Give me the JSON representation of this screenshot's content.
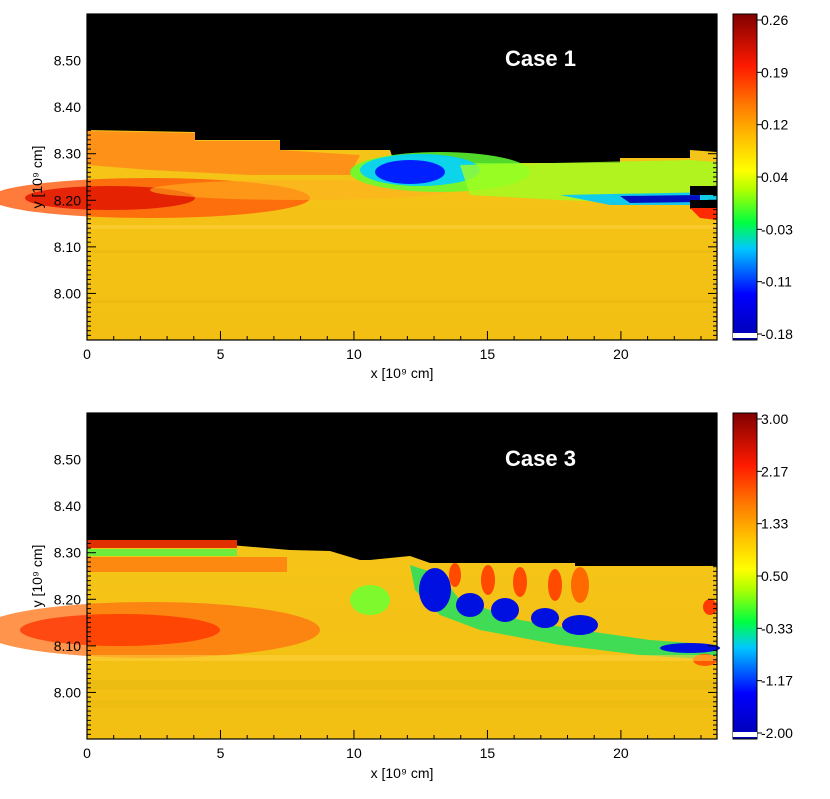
{
  "chart_data": [
    {
      "type": "heatmap",
      "annotation": "Case 1",
      "xlabel": "x [10⁹ cm]",
      "ylabel": "y [10⁹ cm]",
      "xlim": [
        0,
        23.6
      ],
      "ylim": [
        7.9,
        8.6
      ],
      "x_ticks": [
        0,
        5,
        10,
        15,
        20
      ],
      "y_ticks": [
        8.0,
        8.1,
        8.2,
        8.3,
        8.4,
        8.5
      ],
      "y_tick_labels": [
        "8.00",
        "8.10",
        "8.20",
        "8.30",
        "8.40",
        "8.50"
      ],
      "colorbar": {
        "range": [
          -0.18,
          0.26
        ],
        "tick_labels": [
          "0.26",
          "0.19",
          "0.12",
          "0.04",
          "-0.03",
          "-0.11",
          "-0.18"
        ]
      },
      "colors": {
        "background_top": "#000000",
        "base_field": "#f5c518"
      }
    },
    {
      "type": "heatmap",
      "annotation": "Case 3",
      "xlabel": "x [10⁹ cm]",
      "ylabel": "y [10⁹ cm]",
      "xlim": [
        0,
        23.6
      ],
      "ylim": [
        7.9,
        8.6
      ],
      "x_ticks": [
        0,
        5,
        10,
        15,
        20
      ],
      "y_ticks": [
        8.0,
        8.1,
        8.2,
        8.3,
        8.4,
        8.5
      ],
      "y_tick_labels": [
        "8.00",
        "8.10",
        "8.20",
        "8.30",
        "8.40",
        "8.50"
      ],
      "colorbar": {
        "range": [
          -2.0,
          3.0
        ],
        "tick_labels": [
          "3.00",
          "2.17",
          "1.33",
          "0.50",
          "-0.33",
          "-1.17",
          "-2.00"
        ]
      },
      "colors": {
        "background_top": "#000000",
        "base_field": "#f5c518"
      }
    }
  ]
}
